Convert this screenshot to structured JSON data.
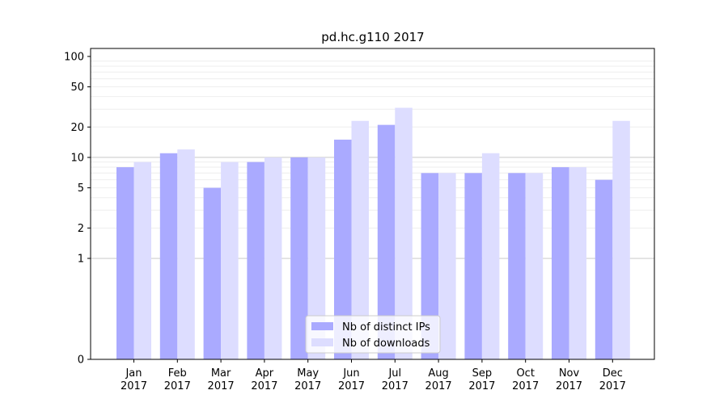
{
  "chart_data": {
    "type": "bar",
    "title": "pd.hc.g110 2017",
    "xlabel": "",
    "ylabel": "",
    "y_scale": "symlog",
    "ylim": [
      0,
      120
    ],
    "yticks": [
      0,
      1,
      2,
      5,
      10,
      20,
      50,
      100
    ],
    "ytick_labels": [
      "0",
      "1",
      "2",
      "5",
      "10",
      "20",
      "50",
      "100"
    ],
    "categories": [
      "Jan\n2017",
      "Feb\n2017",
      "Mar\n2017",
      "Apr\n2017",
      "May\n2017",
      "Jun\n2017",
      "Jul\n2017",
      "Aug\n2017",
      "Sep\n2017",
      "Oct\n2017",
      "Nov\n2017",
      "Dec\n2017"
    ],
    "series": [
      {
        "name": "Nb of distinct IPs",
        "color": "#aaaaff",
        "values": [
          8,
          11,
          5,
          9,
          10,
          15,
          21,
          7,
          7,
          7,
          8,
          6
        ]
      },
      {
        "name": "Nb of downloads",
        "color": "#ddddff",
        "values": [
          9,
          12,
          9,
          10,
          10,
          23,
          31,
          7,
          11,
          7,
          8,
          23
        ]
      }
    ],
    "grid": true,
    "legend_position": "bottom-center"
  }
}
